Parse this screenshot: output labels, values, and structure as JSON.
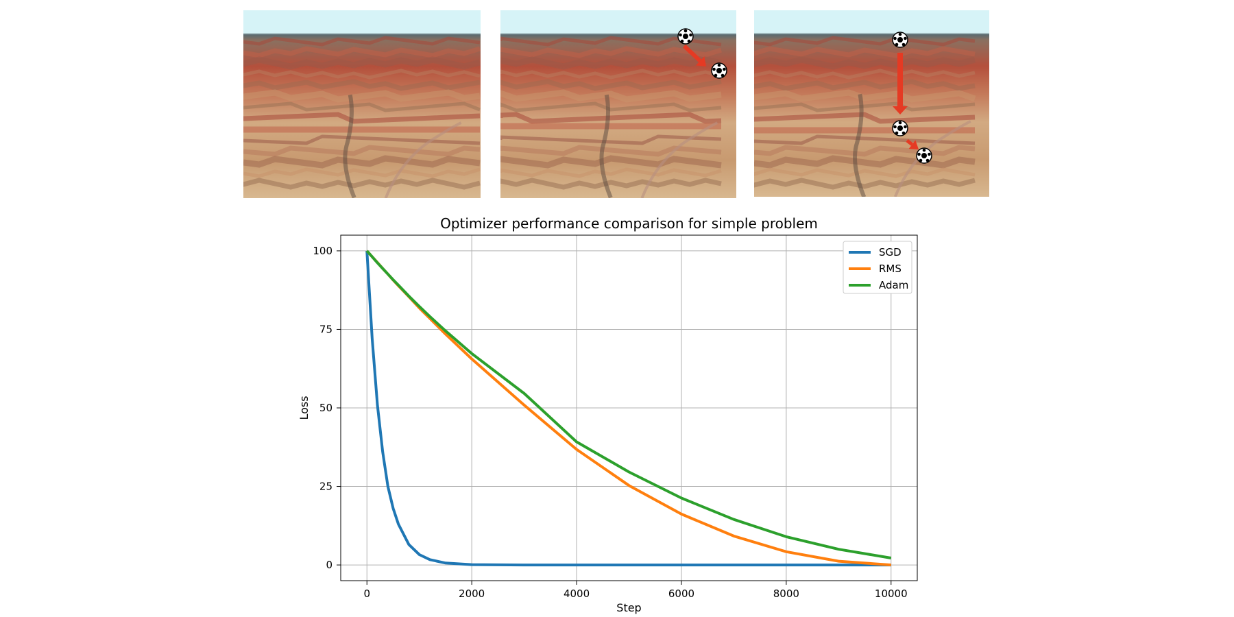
{
  "photos": [
    {
      "name": "canyon-photo-1",
      "balls": 0
    },
    {
      "name": "canyon-photo-2",
      "balls": 2
    },
    {
      "name": "canyon-photo-3",
      "balls": 3
    }
  ],
  "colors": {
    "sky": "#d6f3f7",
    "canyon_red": "#b4503c",
    "canyon_tan": "#d2aa82",
    "arrow": "#e53a23",
    "grid": "#b0b0b0",
    "sgd": "#1f77b4",
    "rms": "#ff7f0e",
    "adam": "#2ca02c"
  },
  "icons": {
    "ball": "soccer-ball-icon",
    "arrow": "red-arrow-icon"
  },
  "chart_data": {
    "type": "line",
    "title": "Optimizer performance comparison for simple problem",
    "xlabel": "Step",
    "ylabel": "Loss",
    "xlim": [
      -500,
      10500
    ],
    "ylim": [
      -5,
      105
    ],
    "xticks": [
      0,
      2000,
      4000,
      6000,
      8000,
      10000
    ],
    "yticks": [
      0,
      25,
      50,
      75,
      100
    ],
    "grid": true,
    "legend_position": "top-right",
    "x": [
      0,
      100,
      200,
      300,
      400,
      500,
      600,
      800,
      1000,
      1200,
      1500,
      2000,
      3000,
      4000,
      5000,
      6000,
      7000,
      8000,
      9000,
      10000
    ],
    "series": [
      {
        "name": "SGD",
        "values": [
          100,
          72,
          51,
          36,
          25,
          18,
          13,
          6.5,
          3.3,
          1.7,
          0.6,
          0.1,
          0,
          0,
          0,
          0,
          0,
          0,
          0,
          0
        ]
      },
      {
        "name": "RMS",
        "values": [
          100,
          98.1,
          96.3,
          94.4,
          92.6,
          90.7,
          88.9,
          85.4,
          81.8,
          78.5,
          73.5,
          65.6,
          50.9,
          36.8,
          25.3,
          16.2,
          9.2,
          4.2,
          1.2,
          0
        ]
      },
      {
        "name": "Adam",
        "values": [
          100,
          98.1,
          96.2,
          94.4,
          92.6,
          90.8,
          89.1,
          85.6,
          82.3,
          79.1,
          74.5,
          67.3,
          54.6,
          39.2,
          29.6,
          21.3,
          14.5,
          9.0,
          5.0,
          2.2
        ]
      }
    ]
  }
}
